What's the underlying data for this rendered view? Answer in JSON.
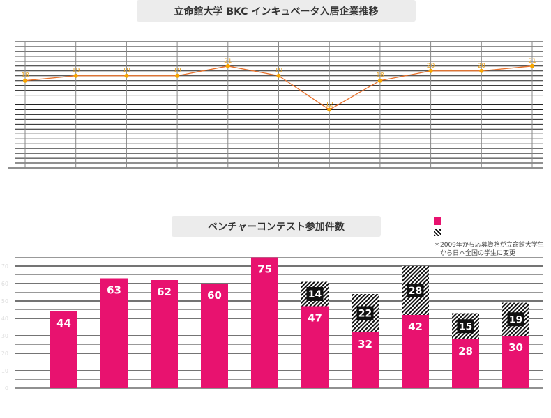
{
  "chart_data": [
    {
      "type": "line",
      "title": "立命館大学 BKC インキュベータ入居企業推移",
      "categories": [
        "",
        "",
        "",
        "",
        "",
        "",
        "",
        "",
        "",
        "",
        ""
      ],
      "values": [
        18,
        19,
        19,
        19,
        21,
        19,
        12,
        18,
        20,
        20,
        21
      ],
      "ylim": [
        0,
        26
      ],
      "grid": true,
      "line_color": "#e8702a",
      "point_color": "#f7a600"
    },
    {
      "type": "bar",
      "title": "ベンチャーコンテスト参加件数",
      "ylim": [
        0,
        80
      ],
      "yticks": [
        0,
        10,
        20,
        30,
        40,
        50,
        60,
        70
      ],
      "categories": [
        "",
        "",
        "",
        "",
        "",
        "",
        "",
        "",
        "",
        ""
      ],
      "series": [
        {
          "values": [
            44,
            63,
            62,
            60,
            75,
            47,
            32,
            42,
            28,
            30
          ],
          "color": "#e8126f"
        },
        {
          "values": [
            0,
            0,
            0,
            0,
            0,
            14,
            22,
            28,
            15,
            19
          ],
          "color": "hatch"
        }
      ],
      "note_lines": [
        "＊2009年から応募資格が立命館大学生",
        "　から日本全国の学生に変更"
      ],
      "grid": true
    }
  ]
}
